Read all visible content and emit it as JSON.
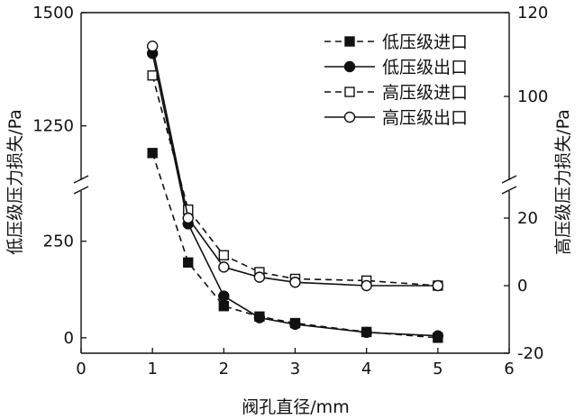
{
  "chart_data": {
    "type": "line",
    "xlabel": "阀孔直径/mm",
    "ylabel_left": "低压级压力损失/Pa",
    "ylabel_right": "高压级压力损失/Pa",
    "xlim": [
      0,
      6
    ],
    "x_ticks": [
      "0",
      "1",
      "2",
      "3",
      "4",
      "5",
      "6"
    ],
    "left_axis": {
      "broken": true,
      "lower_range": [
        -40,
        380
      ],
      "upper_range": [
        1130,
        1500
      ],
      "lower_ticks": [
        "0",
        "250"
      ],
      "upper_ticks": [
        "1250",
        "1500"
      ]
    },
    "right_axis": {
      "broken": true,
      "lower_range": [
        -20,
        28
      ],
      "upper_range": [
        80,
        120
      ],
      "lower_ticks": [
        "-20",
        "0",
        "20"
      ],
      "upper_ticks": [
        "100",
        "120"
      ]
    },
    "series": [
      {
        "name": "低压级进口",
        "axis": "left",
        "line": "dashed",
        "marker": "square-filled",
        "x": [
          1,
          1.5,
          2,
          2.5,
          3,
          4,
          5
        ],
        "y": [
          1190,
          195,
          82,
          55,
          38,
          15,
          0
        ]
      },
      {
        "name": "低压级出口",
        "axis": "left",
        "line": "solid",
        "marker": "circle-filled",
        "x": [
          1,
          1.5,
          2,
          2.5,
          3,
          4,
          5
        ],
        "y": [
          1410,
          295,
          108,
          52,
          35,
          14,
          5
        ]
      },
      {
        "name": "高压级进口",
        "axis": "right",
        "line": "dashed",
        "marker": "square-open",
        "x": [
          1,
          1.5,
          2,
          2.5,
          3,
          4,
          5
        ],
        "y": [
          105,
          22.5,
          9,
          4,
          2,
          1.5,
          0
        ]
      },
      {
        "name": "高压级出口",
        "axis": "right",
        "line": "solid",
        "marker": "circle-open",
        "x": [
          1,
          1.5,
          2,
          2.5,
          3,
          4,
          5
        ],
        "y": [
          112,
          20,
          5.5,
          2.5,
          1,
          0,
          0
        ]
      }
    ],
    "legend": {
      "position": "top-right"
    },
    "grid": false
  }
}
